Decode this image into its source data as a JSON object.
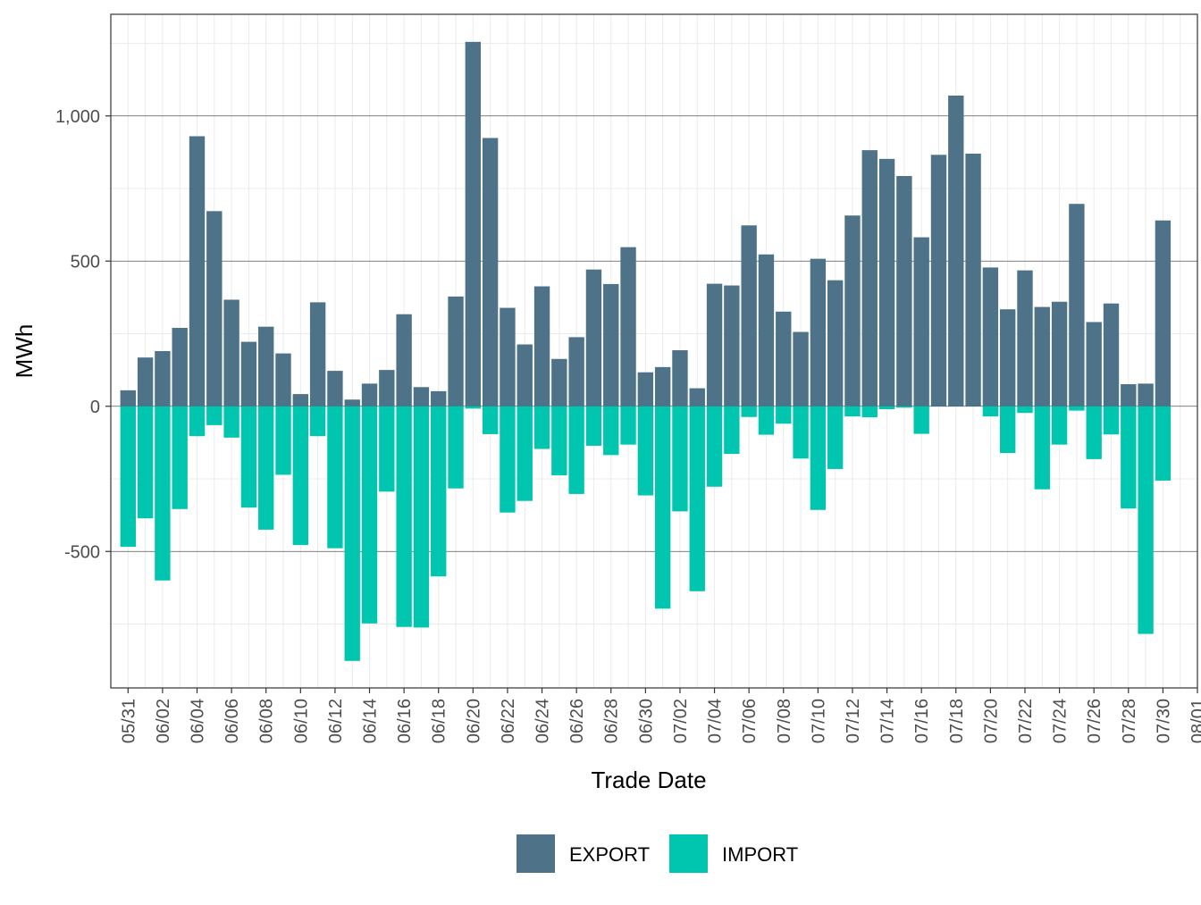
{
  "chart_data": {
    "type": "bar",
    "xlabel": "Trade Date",
    "ylabel": "MWh",
    "ylim": [
      -970,
      1350
    ],
    "y_ticks": [
      -500,
      0,
      500,
      1000
    ],
    "y_tick_labels": [
      "-500",
      "0",
      "500",
      "1,000"
    ],
    "x_range": [
      "05/30",
      "08/01"
    ],
    "x_ticks": [
      "05/31",
      "06/02",
      "06/04",
      "06/06",
      "06/08",
      "06/10",
      "06/12",
      "06/14",
      "06/16",
      "06/18",
      "06/20",
      "06/22",
      "06/24",
      "06/26",
      "06/28",
      "06/30",
      "07/02",
      "07/04",
      "07/06",
      "07/08",
      "07/10",
      "07/12",
      "07/14",
      "07/16",
      "07/18",
      "07/20",
      "07/22",
      "07/24",
      "07/26",
      "07/28",
      "07/30",
      "08/01"
    ],
    "grid": true,
    "legend_position": "bottom",
    "colors": {
      "EXPORT": "#4e7287",
      "IMPORT": "#00c6b0"
    },
    "categories": [
      "05/31",
      "06/01",
      "06/02",
      "06/03",
      "06/04",
      "06/05",
      "06/06",
      "06/07",
      "06/08",
      "06/09",
      "06/10",
      "06/11",
      "06/12",
      "06/13",
      "06/14",
      "06/15",
      "06/16",
      "06/17",
      "06/18",
      "06/19",
      "06/20",
      "06/21",
      "06/22",
      "06/23",
      "06/24",
      "06/25",
      "06/26",
      "06/27",
      "06/28",
      "06/29",
      "06/30",
      "07/01",
      "07/02",
      "07/03",
      "07/04",
      "07/05",
      "07/06",
      "07/07",
      "07/08",
      "07/09",
      "07/10",
      "07/11",
      "07/12",
      "07/13",
      "07/14",
      "07/15",
      "07/16",
      "07/17",
      "07/18",
      "07/19",
      "07/20",
      "07/21",
      "07/22",
      "07/23",
      "07/24",
      "07/25",
      "07/26",
      "07/27",
      "07/28",
      "07/29",
      "07/30"
    ],
    "series": [
      {
        "name": "EXPORT",
        "values": [
          55,
          168,
          190,
          270,
          930,
          672,
          367,
          222,
          274,
          182,
          42,
          358,
          122,
          23,
          78,
          125,
          317,
          66,
          52,
          378,
          1255,
          924,
          339,
          213,
          413,
          163,
          238,
          471,
          421,
          548,
          117,
          135,
          193,
          62,
          422,
          416,
          623,
          523,
          326,
          256,
          508,
          434,
          657,
          882,
          852,
          793,
          582,
          866,
          1070,
          870,
          478,
          334,
          468,
          342,
          360,
          697,
          290,
          354,
          76,
          78,
          640
        ]
      },
      {
        "name": "IMPORT",
        "values": [
          -484,
          -386,
          -600,
          -354,
          -103,
          -65,
          -108,
          -349,
          -425,
          -236,
          -478,
          -103,
          -489,
          -877,
          -748,
          -294,
          -760,
          -762,
          -586,
          -283,
          -8,
          -96,
          -366,
          -326,
          -147,
          -238,
          -302,
          -136,
          -168,
          -132,
          -307,
          -697,
          -362,
          -637,
          -277,
          -164,
          -37,
          -98,
          -60,
          -180,
          -357,
          -216,
          -35,
          -38,
          -10,
          -5,
          -95,
          0,
          0,
          0,
          -35,
          -161,
          -23,
          -286,
          -132,
          -15,
          -182,
          -97,
          -352,
          -784,
          -256
        ]
      }
    ]
  }
}
